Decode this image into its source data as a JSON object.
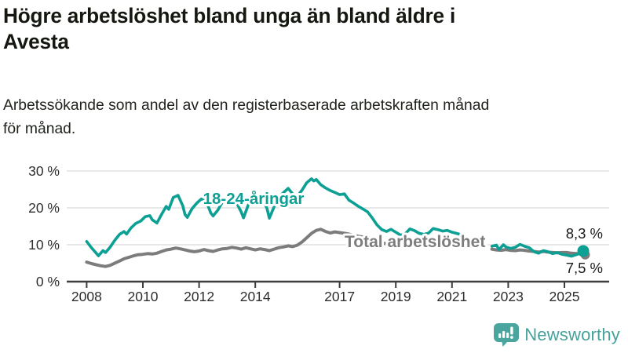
{
  "header": {
    "title_lines": [
      "Högre arbetslöshet bland unga än bland äldre i",
      "Avesta"
    ],
    "subtitle_lines": [
      "Arbetssökande som andel av den registerbaserade arbetskraften månad",
      "för månad."
    ]
  },
  "chart_data": {
    "type": "line",
    "x_unit": "decimal_year",
    "ylabel": "",
    "xlabel": "",
    "ylim": [
      0,
      30
    ],
    "grid": "horizontal",
    "yticks": [
      {
        "value": 0,
        "label": "0 %"
      },
      {
        "value": 10,
        "label": "10 %"
      },
      {
        "value": 20,
        "label": "20 %"
      },
      {
        "value": 30,
        "label": "30 %"
      }
    ],
    "xticks": [
      {
        "value": 2008,
        "label": "2008"
      },
      {
        "value": 2010,
        "label": "2010"
      },
      {
        "value": 2012,
        "label": "2012"
      },
      {
        "value": 2014,
        "label": "2014"
      },
      {
        "value": 2017,
        "label": "2017"
      },
      {
        "value": 2019,
        "label": "2019"
      },
      {
        "value": 2021,
        "label": "2021"
      },
      {
        "value": 2023,
        "label": "2023"
      },
      {
        "value": 2025,
        "label": "2025"
      }
    ],
    "series": [
      {
        "name": "Total arbetslöshet",
        "color": "#7c7c7c",
        "end_label": "7,5 %",
        "end_value": 7.5,
        "points": [
          [
            2008.0,
            5.3
          ],
          [
            2008.17,
            4.9
          ],
          [
            2008.33,
            4.6
          ],
          [
            2008.5,
            4.3
          ],
          [
            2008.67,
            4.1
          ],
          [
            2008.83,
            4.4
          ],
          [
            2009.0,
            5.0
          ],
          [
            2009.17,
            5.6
          ],
          [
            2009.33,
            6.2
          ],
          [
            2009.5,
            6.6
          ],
          [
            2009.67,
            7.0
          ],
          [
            2009.83,
            7.3
          ],
          [
            2010.0,
            7.4
          ],
          [
            2010.17,
            7.6
          ],
          [
            2010.33,
            7.5
          ],
          [
            2010.5,
            7.7
          ],
          [
            2010.67,
            8.2
          ],
          [
            2010.83,
            8.6
          ],
          [
            2011.0,
            8.8
          ],
          [
            2011.17,
            9.1
          ],
          [
            2011.33,
            8.9
          ],
          [
            2011.5,
            8.6
          ],
          [
            2011.67,
            8.3
          ],
          [
            2011.83,
            8.1
          ],
          [
            2012.0,
            8.3
          ],
          [
            2012.17,
            8.7
          ],
          [
            2012.33,
            8.4
          ],
          [
            2012.5,
            8.2
          ],
          [
            2012.67,
            8.6
          ],
          [
            2012.83,
            8.9
          ],
          [
            2013.0,
            9.0
          ],
          [
            2013.17,
            9.3
          ],
          [
            2013.33,
            9.1
          ],
          [
            2013.5,
            8.8
          ],
          [
            2013.67,
            9.2
          ],
          [
            2013.83,
            8.9
          ],
          [
            2014.0,
            8.6
          ],
          [
            2014.17,
            8.9
          ],
          [
            2014.33,
            8.7
          ],
          [
            2014.5,
            8.4
          ],
          [
            2014.67,
            8.8
          ],
          [
            2014.83,
            9.2
          ],
          [
            2015.0,
            9.4
          ],
          [
            2015.17,
            9.7
          ],
          [
            2015.33,
            9.5
          ],
          [
            2015.5,
            9.9
          ],
          [
            2015.67,
            10.8
          ],
          [
            2015.83,
            11.9
          ],
          [
            2016.0,
            13.1
          ],
          [
            2016.17,
            13.9
          ],
          [
            2016.33,
            14.2
          ],
          [
            2016.5,
            13.6
          ],
          [
            2016.67,
            13.2
          ],
          [
            2016.83,
            13.5
          ],
          [
            2017.0,
            13.3
          ],
          [
            2017.17,
            13.1
          ],
          [
            2017.33,
            12.9
          ],
          [
            2017.5,
            12.6
          ],
          [
            2017.67,
            12.3
          ],
          [
            2017.83,
            12.1
          ],
          [
            2018.0,
            11.8
          ],
          [
            2018.17,
            11.4
          ],
          [
            2018.33,
            11.0
          ],
          [
            2018.5,
            10.6
          ],
          [
            2018.67,
            10.2
          ],
          [
            2022.42,
            8.8
          ],
          [
            2022.58,
            8.6
          ],
          [
            2022.75,
            8.5
          ],
          [
            2022.92,
            8.7
          ],
          [
            2023.08,
            8.5
          ],
          [
            2023.25,
            8.4
          ],
          [
            2023.42,
            8.6
          ],
          [
            2023.58,
            8.5
          ],
          [
            2023.75,
            8.3
          ],
          [
            2023.92,
            8.2
          ],
          [
            2024.08,
            8.0
          ],
          [
            2024.25,
            8.2
          ],
          [
            2024.42,
            8.0
          ],
          [
            2024.58,
            7.9
          ],
          [
            2024.75,
            7.8
          ],
          [
            2024.92,
            7.9
          ],
          [
            2025.08,
            7.9
          ],
          [
            2025.25,
            7.7
          ],
          [
            2025.42,
            7.6
          ],
          [
            2025.58,
            7.5
          ],
          [
            2025.67,
            7.5
          ]
        ]
      },
      {
        "name": "18-24-åringar",
        "color": "#0ba093",
        "end_label": "8,3 %",
        "end_value": 8.3,
        "points": [
          [
            2008.0,
            10.9
          ],
          [
            2008.17,
            9.2
          ],
          [
            2008.33,
            7.8
          ],
          [
            2008.42,
            7.0
          ],
          [
            2008.58,
            8.4
          ],
          [
            2008.67,
            7.9
          ],
          [
            2008.83,
            9.3
          ],
          [
            2009.0,
            11.2
          ],
          [
            2009.17,
            12.8
          ],
          [
            2009.33,
            13.6
          ],
          [
            2009.42,
            12.9
          ],
          [
            2009.58,
            14.6
          ],
          [
            2009.75,
            15.8
          ],
          [
            2009.92,
            16.4
          ],
          [
            2010.08,
            17.6
          ],
          [
            2010.25,
            17.9
          ],
          [
            2010.33,
            16.8
          ],
          [
            2010.5,
            15.9
          ],
          [
            2010.67,
            18.3
          ],
          [
            2010.83,
            20.4
          ],
          [
            2010.92,
            19.6
          ],
          [
            2011.08,
            22.8
          ],
          [
            2011.25,
            23.4
          ],
          [
            2011.42,
            20.6
          ],
          [
            2011.5,
            18.2
          ],
          [
            2011.58,
            17.4
          ],
          [
            2011.75,
            19.8
          ],
          [
            2011.92,
            21.3
          ],
          [
            2012.08,
            22.4
          ],
          [
            2012.25,
            21.9
          ],
          [
            2012.42,
            18.6
          ],
          [
            2012.5,
            17.8
          ],
          [
            2012.67,
            19.4
          ],
          [
            2012.83,
            21.6
          ],
          [
            2013.0,
            22.3
          ],
          [
            2013.17,
            23.1
          ],
          [
            2013.33,
            21.4
          ],
          [
            2013.5,
            18.9
          ],
          [
            2013.58,
            17.3
          ],
          [
            2013.75,
            20.8
          ],
          [
            2013.92,
            22.1
          ],
          [
            2014.08,
            23.2
          ],
          [
            2014.25,
            22.6
          ],
          [
            2014.42,
            19.8
          ],
          [
            2014.5,
            17.2
          ],
          [
            2014.67,
            20.3
          ],
          [
            2014.83,
            22.9
          ],
          [
            2015.0,
            24.1
          ],
          [
            2015.17,
            25.3
          ],
          [
            2015.33,
            23.8
          ],
          [
            2015.5,
            23.2
          ],
          [
            2015.67,
            24.9
          ],
          [
            2015.83,
            26.8
          ],
          [
            2016.0,
            27.9
          ],
          [
            2016.08,
            27.3
          ],
          [
            2016.17,
            27.7
          ],
          [
            2016.33,
            26.3
          ],
          [
            2016.5,
            25.4
          ],
          [
            2016.67,
            24.7
          ],
          [
            2016.83,
            24.2
          ],
          [
            2017.0,
            23.6
          ],
          [
            2017.17,
            23.8
          ],
          [
            2017.33,
            22.1
          ],
          [
            2017.5,
            21.3
          ],
          [
            2017.67,
            20.4
          ],
          [
            2017.83,
            19.7
          ],
          [
            2018.0,
            18.9
          ],
          [
            2018.17,
            17.2
          ],
          [
            2018.33,
            15.4
          ],
          [
            2018.5,
            14.1
          ],
          [
            2018.67,
            13.6
          ],
          [
            2018.83,
            14.2
          ],
          [
            2019.0,
            13.4
          ],
          [
            2019.17,
            12.6
          ],
          [
            2019.33,
            12.9
          ],
          [
            2019.5,
            14.3
          ],
          [
            2019.67,
            13.8
          ],
          [
            2019.83,
            13.1
          ],
          [
            2020.0,
            12.8
          ],
          [
            2020.17,
            13.2
          ],
          [
            2020.33,
            14.4
          ],
          [
            2020.5,
            14.1
          ],
          [
            2020.67,
            13.7
          ],
          [
            2020.83,
            13.9
          ],
          [
            2021.0,
            13.4
          ],
          [
            2021.25,
            12.9
          ],
          [
            2022.42,
            9.6
          ],
          [
            2022.58,
            9.9
          ],
          [
            2022.67,
            8.7
          ],
          [
            2022.83,
            10.0
          ],
          [
            2022.92,
            9.4
          ],
          [
            2023.08,
            9.0
          ],
          [
            2023.25,
            9.3
          ],
          [
            2023.42,
            10.1
          ],
          [
            2023.58,
            9.6
          ],
          [
            2023.75,
            9.2
          ],
          [
            2023.92,
            8.1
          ],
          [
            2024.08,
            7.7
          ],
          [
            2024.25,
            8.4
          ],
          [
            2024.42,
            8.1
          ],
          [
            2024.58,
            7.6
          ],
          [
            2024.75,
            7.9
          ],
          [
            2024.92,
            7.4
          ],
          [
            2025.08,
            7.2
          ],
          [
            2025.25,
            6.9
          ],
          [
            2025.42,
            7.3
          ],
          [
            2025.58,
            7.8
          ],
          [
            2025.67,
            8.3
          ]
        ]
      }
    ],
    "annotations": {
      "youth_label": "18-24-åringar",
      "total_label": "Total arbetslöshet",
      "end_label_youth": "8,3 %",
      "end_label_total": "7,5 %"
    },
    "colors": {
      "youth": "#0ba093",
      "total": "#7c7c7c",
      "axis": "#3d3d3d",
      "gridline": "#e1e1e1",
      "tick_text": "#2d2d2d"
    }
  },
  "footer": {
    "brand": "Newsworthy",
    "brand_color": "#45a29a"
  }
}
